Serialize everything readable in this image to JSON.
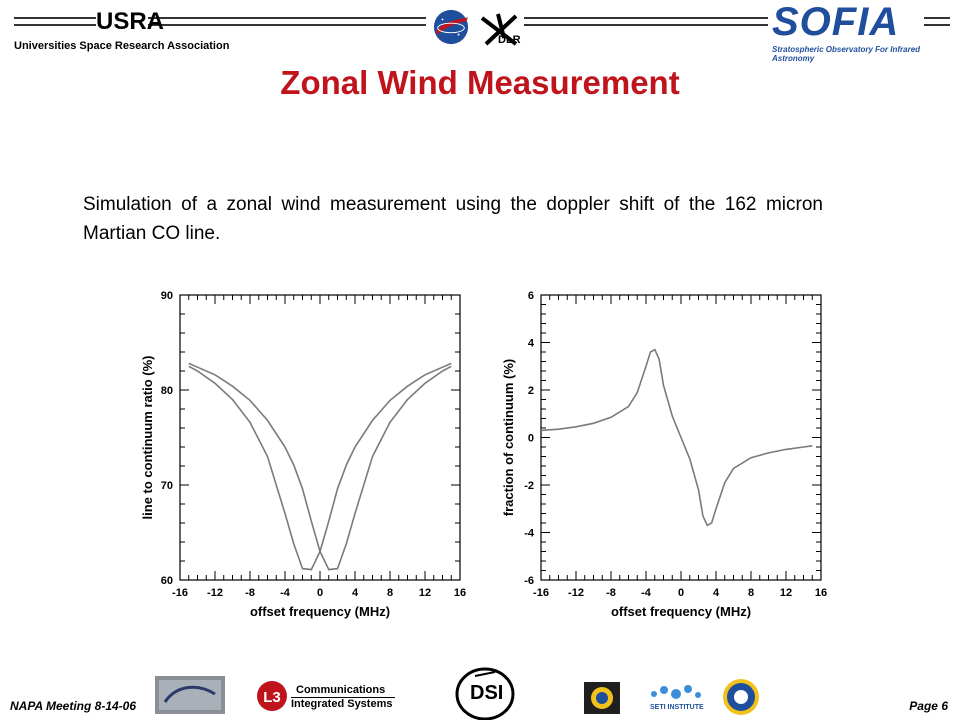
{
  "header": {
    "org_name": "Universities Space Research Association",
    "usra_logo_text": "USRA",
    "dlr_text": "DLR",
    "sofia_word": "SOFIA",
    "sofia_tagline": "Stratospheric Observatory For Infrared Astronomy"
  },
  "slide": {
    "title": "Zonal Wind Measurement",
    "intro": "Simulation of a zonal wind measurement using the doppler shift of the 162 micron Martian CO line."
  },
  "footer": {
    "meeting": "NAPA Meeting 8-14-06",
    "page": "Page 6",
    "l3_line1": "Communications",
    "l3_line2": "Integrated Systems",
    "dsi_text": "DSI",
    "seti_text": "SETI INSTITUTE"
  },
  "colors": {
    "title_red": "#c0141c",
    "sofia_blue": "#1f4e9c",
    "curve_gray": "#7a7a7a"
  },
  "chart_data": [
    {
      "type": "line",
      "xlabel": "offset frequency (MHz)",
      "ylabel": "line to continuum ratio (%)",
      "xlim": [
        -16,
        16
      ],
      "ylim": [
        60,
        90
      ],
      "xticks": [
        -16,
        -12,
        -8,
        -4,
        0,
        4,
        8,
        12,
        16
      ],
      "yticks": [
        60,
        70,
        80,
        90
      ],
      "series": [
        {
          "x": [
            -15,
            -14,
            -12,
            -10,
            -8,
            -6,
            -4,
            -3,
            -2,
            -1,
            0,
            1,
            2,
            3,
            4,
            6,
            8,
            10,
            12,
            14,
            15
          ],
          "y": [
            82.5,
            82.0,
            80.7,
            79.0,
            76.6,
            73.0,
            67.0,
            63.8,
            61.2,
            61.1,
            63.0,
            66.2,
            69.6,
            72.1,
            74.0,
            76.8,
            78.9,
            80.4,
            81.6,
            82.4,
            82.8
          ]
        },
        {
          "x": [
            -15,
            -14,
            -12,
            -10,
            -8,
            -6,
            -4,
            -3,
            -2,
            -1,
            0,
            1,
            2,
            3,
            4,
            6,
            8,
            10,
            12,
            14,
            15
          ],
          "y": [
            82.8,
            82.4,
            81.6,
            80.4,
            78.9,
            76.8,
            74.0,
            72.1,
            69.6,
            66.2,
            63.0,
            61.1,
            61.2,
            63.8,
            67.0,
            73.0,
            76.6,
            79.0,
            80.7,
            82.0,
            82.5
          ]
        }
      ]
    },
    {
      "type": "line",
      "xlabel": "offset frequency (MHz)",
      "ylabel": "fraction of continuum (%)",
      "xlim": [
        -16,
        16
      ],
      "ylim": [
        -6,
        6
      ],
      "xticks": [
        -16,
        -12,
        -8,
        -4,
        0,
        4,
        8,
        12,
        16
      ],
      "yticks": [
        -6,
        -4,
        -2,
        0,
        2,
        4,
        6
      ],
      "series": [
        {
          "x": [
            -16,
            -14,
            -12,
            -10,
            -8,
            -6,
            -5,
            -4,
            -3.5,
            -3,
            -2.5,
            -2,
            -1,
            0,
            1,
            2,
            2.5,
            3,
            3.5,
            4,
            5,
            6,
            8,
            10,
            12,
            14,
            15
          ],
          "y": [
            0.3,
            0.35,
            0.45,
            0.6,
            0.85,
            1.3,
            1.9,
            3.0,
            3.6,
            3.7,
            3.3,
            2.2,
            0.9,
            0.0,
            -0.9,
            -2.2,
            -3.3,
            -3.7,
            -3.6,
            -3.0,
            -1.9,
            -1.3,
            -0.85,
            -0.65,
            -0.5,
            -0.4,
            -0.35
          ]
        }
      ]
    }
  ]
}
